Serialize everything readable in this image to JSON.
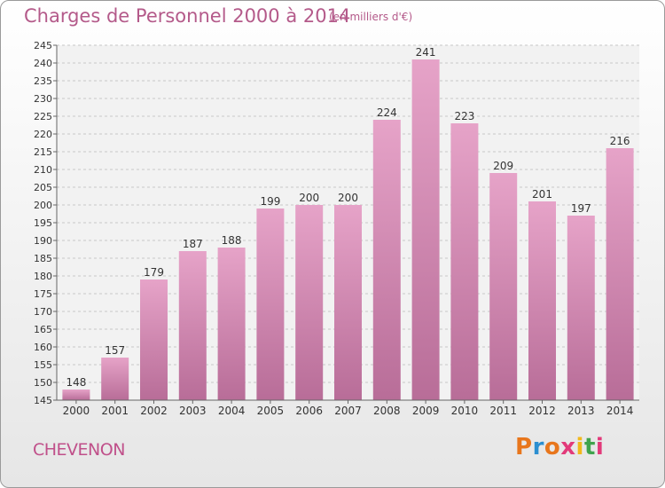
{
  "header": {
    "title": "Charges de Personnel 2000 à 2014",
    "subtitle": "(en milliers d'€)"
  },
  "footer": {
    "commune": "CHEVENON",
    "logo": "Proxiti",
    "logo_colors": [
      "#e8761c",
      "#2c8fd0",
      "#e8761c",
      "#e23a7a",
      "#f2b81b",
      "#3fa34d",
      "#e23a7a"
    ]
  },
  "chart_data": {
    "type": "bar",
    "categories": [
      "2000",
      "2001",
      "2002",
      "2003",
      "2004",
      "2005",
      "2006",
      "2007",
      "2008",
      "2009",
      "2010",
      "2011",
      "2012",
      "2013",
      "2014"
    ],
    "values": [
      148,
      157,
      179,
      187,
      188,
      199,
      200,
      200,
      224,
      241,
      223,
      209,
      201,
      197,
      216
    ],
    "ylim": [
      145,
      245
    ],
    "yticks": [
      145,
      150,
      155,
      160,
      165,
      170,
      175,
      180,
      185,
      190,
      195,
      200,
      205,
      210,
      215,
      220,
      225,
      230,
      235,
      240,
      245
    ],
    "grid": true,
    "bar_color_top": "#e6a3c8",
    "bar_color_bottom": "#b86d98"
  }
}
